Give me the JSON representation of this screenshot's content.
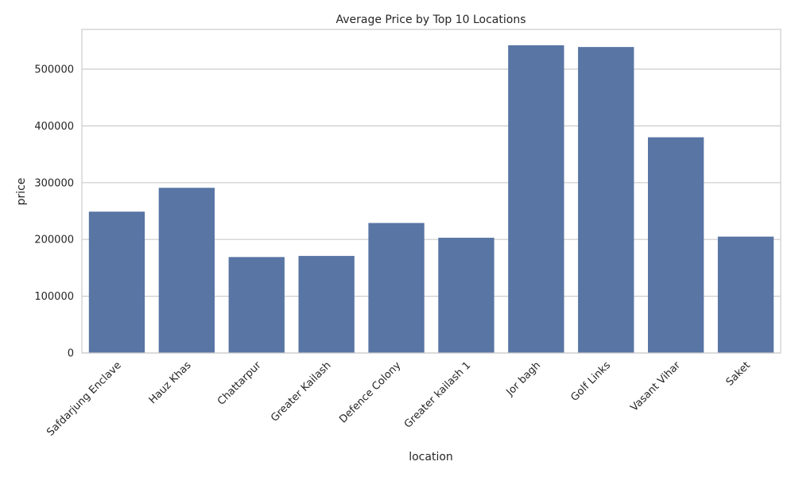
{
  "chart_data": {
    "type": "bar",
    "title": "Average Price by Top 10 Locations",
    "xlabel": "location",
    "ylabel": "price",
    "categories": [
      "Safdarjung Enclave",
      "Hauz Khas",
      "Chattarpur",
      "Greater Kailash",
      "Defence Colony",
      "Greater kailash 1",
      "Jor bagh",
      "Golf Links",
      "Vasant Vihar",
      "Saket"
    ],
    "values": [
      249000,
      291000,
      169000,
      171000,
      229000,
      203000,
      542000,
      539000,
      380000,
      205000
    ],
    "yticks": [
      0,
      100000,
      200000,
      300000,
      400000,
      500000
    ],
    "ylim": [
      0,
      570000
    ],
    "grid": true,
    "bar_color": "#5875a4",
    "grid_color": "#cccccc",
    "spine_color": "#cccccc"
  }
}
